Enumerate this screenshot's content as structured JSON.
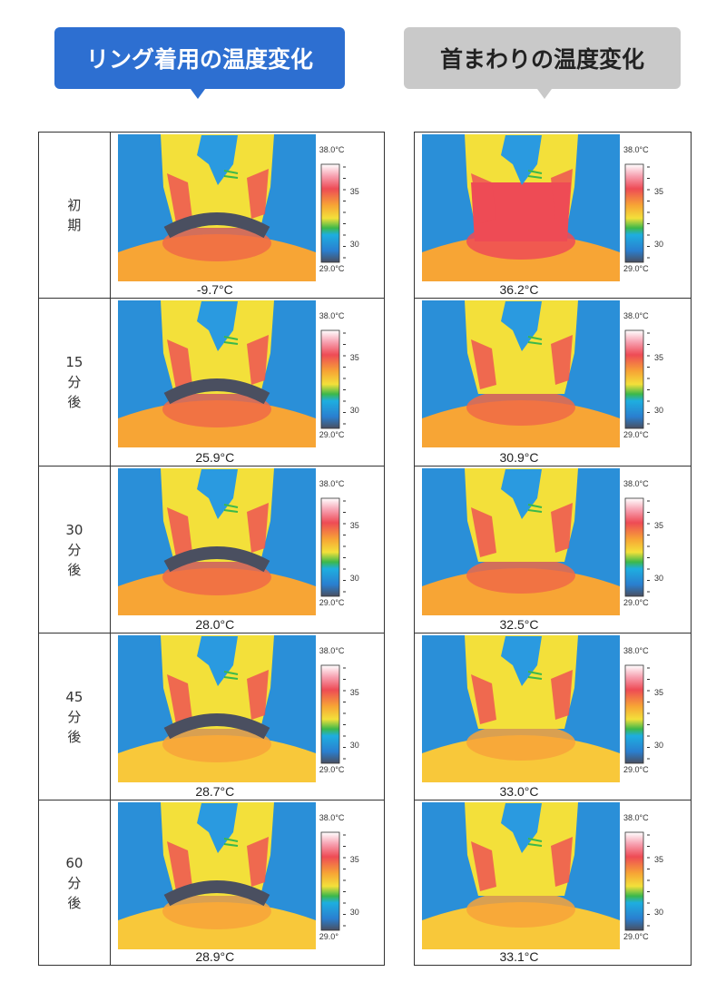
{
  "headers": {
    "left": "リング着用の温度変化",
    "right": "首まわりの温度変化"
  },
  "colors": {
    "left_header": "#2d6fd1",
    "right_header": "#c9c9c9",
    "background_thermal": "#2a8fd8"
  },
  "scale": {
    "max": "38.0°C",
    "mid": "35",
    "low": "30",
    "min": "29.0°C"
  },
  "rows": [
    {
      "label": [
        "初",
        "期"
      ],
      "left": "-9.7°C",
      "right": "36.2°C"
    },
    {
      "label": [
        "15",
        "分",
        "後"
      ],
      "left": "25.9°C",
      "right": "30.9°C"
    },
    {
      "label": [
        "30",
        "分",
        "後"
      ],
      "left": "28.0°C",
      "right": "32.5°C"
    },
    {
      "label": [
        "45",
        "分",
        "後"
      ],
      "left": "28.7°C",
      "right": "33.0°C"
    },
    {
      "label": [
        "60",
        "分",
        "後"
      ],
      "left": "28.9°C",
      "right": "33.1°C",
      "left_scale_min": "29.0°"
    }
  ]
}
